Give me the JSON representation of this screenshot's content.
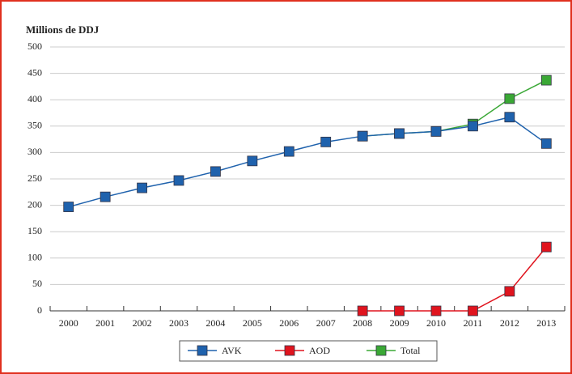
{
  "chart_data": {
    "type": "line",
    "title": "Millions de DDJ",
    "categories": [
      "2000",
      "2001",
      "2002",
      "2003",
      "2004",
      "2005",
      "2006",
      "2007",
      "2008",
      "2009",
      "2010",
      "2011",
      "2012",
      "2013"
    ],
    "series": [
      {
        "name": "Total",
        "color": "#3aa835",
        "values": [
          null,
          null,
          null,
          null,
          null,
          null,
          null,
          null,
          331,
          336,
          340,
          354,
          402,
          437
        ]
      },
      {
        "name": "AVK",
        "color": "#1f62ad",
        "values": [
          197,
          216,
          233,
          247,
          264,
          284,
          302,
          320,
          331,
          336,
          340,
          350,
          367,
          317
        ]
      },
      {
        "name": "AOD",
        "color": "#e0141e",
        "values": [
          null,
          null,
          null,
          null,
          null,
          null,
          null,
          null,
          0,
          0,
          0,
          0,
          37,
          121
        ]
      }
    ],
    "legend_order": [
      "AVK",
      "AOD",
      "Total"
    ],
    "ylim": [
      0,
      500
    ],
    "yticks": [
      0,
      50,
      100,
      150,
      200,
      250,
      300,
      350,
      400,
      450,
      500
    ],
    "grid": true
  }
}
